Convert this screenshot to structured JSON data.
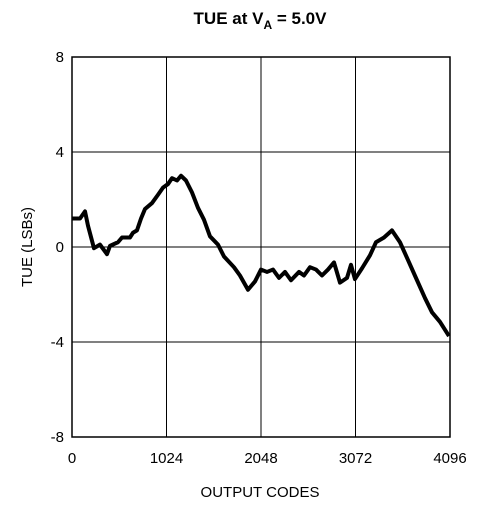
{
  "chart_data": {
    "type": "line",
    "title": [
      "TUE at V",
      "A",
      " = 5.0V"
    ],
    "x_label": "OUTPUT CODES",
    "y_label": "TUE (LSBs)",
    "xlim": [
      0,
      4096
    ],
    "xticks": [
      0,
      1024,
      2048,
      3072,
      4096
    ],
    "ylim": [
      -8,
      8
    ],
    "yticks": [
      -8,
      -4,
      0,
      4,
      8
    ],
    "grid": true,
    "series": [
      {
        "color": "#000000",
        "x": [
          0,
          87,
          141,
          173,
          238,
          303,
          379,
          412,
          498,
          542,
          628,
          661,
          704,
          748,
          791,
          867,
          932,
          986,
          1040,
          1084,
          1138,
          1181,
          1235,
          1300,
          1365,
          1430,
          1495,
          1582,
          1647,
          1755,
          1820,
          1907,
          1983,
          2048,
          2113,
          2178,
          2243,
          2308,
          2373,
          2460,
          2514,
          2579,
          2644,
          2709,
          2774,
          2839,
          2904,
          2980,
          3023,
          3066,
          3142,
          3229,
          3294,
          3381,
          3467,
          3554,
          3641,
          3727,
          3825,
          3901,
          3987,
          4085
        ],
        "values": [
          1.2,
          1.2,
          1.5,
          0.9,
          -0.05,
          0.1,
          -0.3,
          0.05,
          0.2,
          0.4,
          0.4,
          0.6,
          0.7,
          1.2,
          1.6,
          1.85,
          2.2,
          2.5,
          2.65,
          2.9,
          2.8,
          3.0,
          2.8,
          2.3,
          1.65,
          1.15,
          0.45,
          0.1,
          -0.4,
          -0.85,
          -1.2,
          -1.8,
          -1.45,
          -0.95,
          -1.05,
          -0.95,
          -1.3,
          -1.05,
          -1.4,
          -1.05,
          -1.2,
          -0.85,
          -0.95,
          -1.2,
          -0.95,
          -0.65,
          -1.5,
          -1.3,
          -0.75,
          -1.35,
          -0.9,
          -0.35,
          0.2,
          0.4,
          0.7,
          0.2,
          -0.55,
          -1.3,
          -2.15,
          -2.75,
          -3.15,
          -3.75
        ]
      }
    ]
  }
}
